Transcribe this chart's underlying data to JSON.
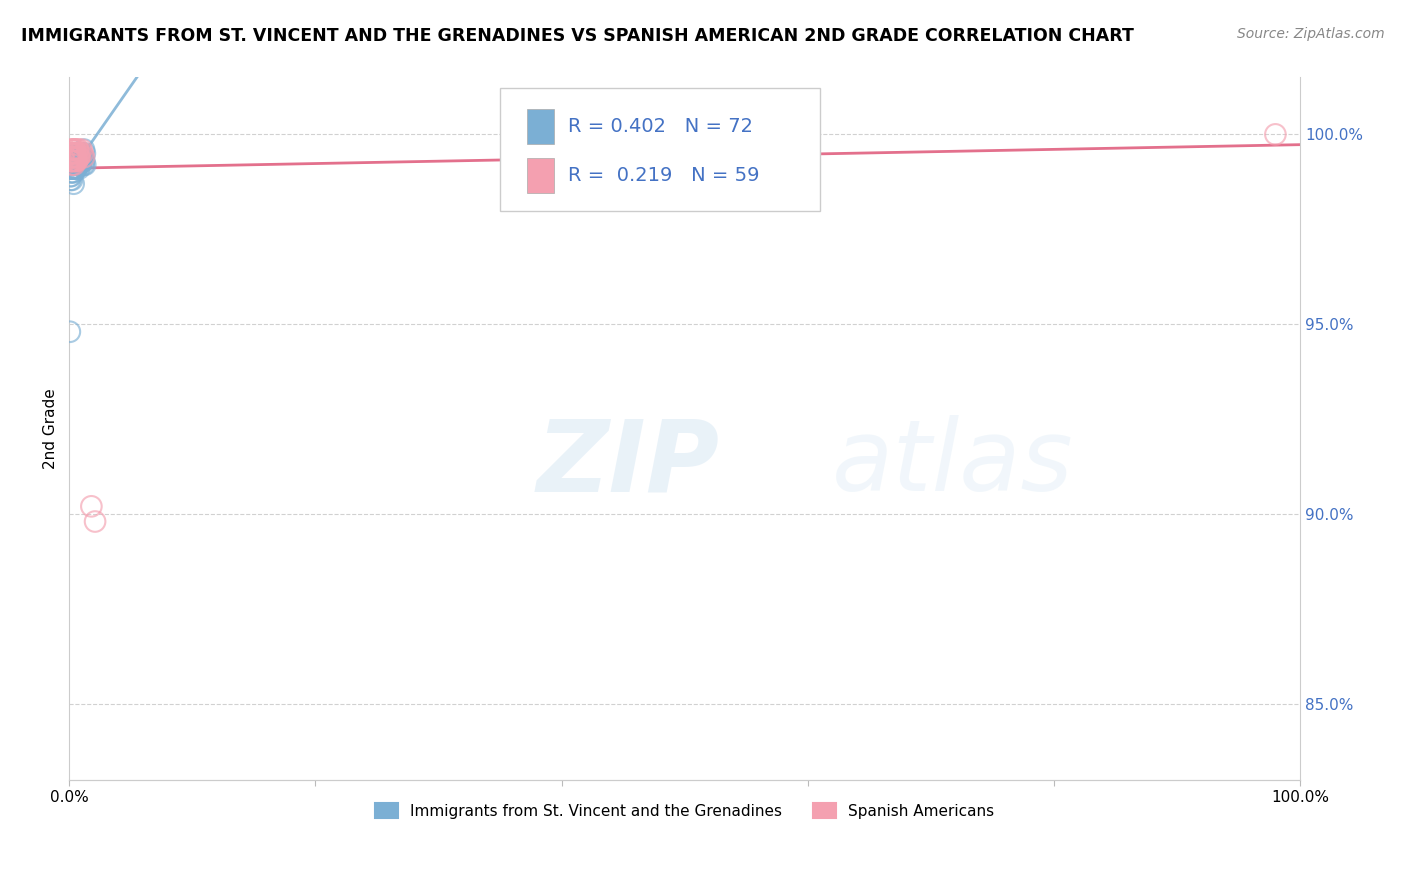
{
  "title": "IMMIGRANTS FROM ST. VINCENT AND THE GRENADINES VS SPANISH AMERICAN 2ND GRADE CORRELATION CHART",
  "source": "Source: ZipAtlas.com",
  "ylabel": "2nd Grade",
  "blue_R": 0.402,
  "blue_N": 72,
  "pink_R": 0.219,
  "pink_N": 59,
  "blue_color": "#7bafd4",
  "pink_color": "#f4a0b0",
  "trend_blue_color": "#7bafd4",
  "trend_pink_color": "#e06080",
  "xlim": [
    0.0,
    100.0
  ],
  "ylim": [
    83.0,
    101.5
  ],
  "right_yticks": [
    85.0,
    90.0,
    95.0,
    100.0
  ],
  "right_yticklabels": [
    "85.0%",
    "90.0%",
    "95.0%",
    "100.0%"
  ],
  "blue_x": [
    0.1,
    0.15,
    0.2,
    0.25,
    0.3,
    0.35,
    0.4,
    0.45,
    0.5,
    0.55,
    0.6,
    0.65,
    0.7,
    0.8,
    0.9,
    1.0,
    1.1,
    1.2,
    1.3,
    0.12,
    0.18,
    0.22,
    0.28,
    0.33,
    0.38,
    0.08,
    0.14,
    0.19,
    0.24,
    0.29,
    0.34,
    0.42,
    0.48,
    0.53,
    0.58,
    0.63,
    0.68,
    0.73,
    0.78,
    0.83,
    0.1,
    0.16,
    0.21,
    0.26,
    0.31,
    0.36,
    0.09,
    0.13,
    0.17,
    0.23,
    0.27,
    0.32,
    0.37,
    0.43,
    0.47,
    0.52,
    0.57,
    0.62,
    0.67,
    0.72,
    0.77,
    0.82,
    0.87,
    0.92,
    0.97,
    1.02,
    1.07,
    1.12,
    1.17,
    1.22,
    1.27,
    0.05
  ],
  "blue_y": [
    99.2,
    99.5,
    99.3,
    99.4,
    99.1,
    99.0,
    99.2,
    99.3,
    99.4,
    99.5,
    99.1,
    99.3,
    99.4,
    99.2,
    99.5,
    99.3,
    99.4,
    99.6,
    99.2,
    99.3,
    99.1,
    99.4,
    99.2,
    99.3,
    99.5,
    99.4,
    99.2,
    99.3,
    99.1,
    99.4,
    99.5,
    99.3,
    99.2,
    99.4,
    99.1,
    99.3,
    99.2,
    99.4,
    99.5,
    99.3,
    98.8,
    98.9,
    99.0,
    99.1,
    99.2,
    98.7,
    98.9,
    99.0,
    99.1,
    98.8,
    99.3,
    99.4,
    99.2,
    99.1,
    99.3,
    99.4,
    99.2,
    99.5,
    99.3,
    99.2,
    99.4,
    99.1,
    99.3,
    99.2,
    99.4,
    99.5,
    99.3,
    99.4,
    99.2,
    99.3,
    99.5,
    94.8
  ],
  "pink_x": [
    0.1,
    0.15,
    0.2,
    0.25,
    0.3,
    0.35,
    0.4,
    0.45,
    0.5,
    0.55,
    0.6,
    0.65,
    0.7,
    0.8,
    0.9,
    1.0,
    1.1,
    1.2,
    0.12,
    0.18,
    0.22,
    0.28,
    0.33,
    0.38,
    0.08,
    0.14,
    0.19,
    0.24,
    0.29,
    0.34,
    0.42,
    0.48,
    0.53,
    0.58,
    0.63,
    0.68,
    0.73,
    0.78,
    0.83,
    0.1,
    0.16,
    0.21,
    0.26,
    0.31,
    0.36,
    1.8,
    2.1,
    0.09,
    0.13,
    0.17,
    0.23,
    0.27,
    0.32,
    0.37,
    0.43,
    0.47,
    0.52,
    0.57,
    98.0
  ],
  "pink_y": [
    99.5,
    99.6,
    99.4,
    99.3,
    99.5,
    99.4,
    99.2,
    99.5,
    99.6,
    99.4,
    99.3,
    99.5,
    99.6,
    99.4,
    99.5,
    99.6,
    99.5,
    99.4,
    99.3,
    99.4,
    99.5,
    99.3,
    99.6,
    99.4,
    99.5,
    99.3,
    99.4,
    99.2,
    99.5,
    99.4,
    99.6,
    99.3,
    99.4,
    99.5,
    99.3,
    99.4,
    99.6,
    99.5,
    99.4,
    99.3,
    99.5,
    99.4,
    99.3,
    99.6,
    99.4,
    90.2,
    89.8,
    99.5,
    99.4,
    99.3,
    99.5,
    99.4,
    99.6,
    99.3,
    99.4,
    99.5,
    99.3,
    99.4,
    100.0
  ],
  "legend_blue_label": "Immigrants from St. Vincent and the Grenadines",
  "legend_pink_label": "Spanish Americans",
  "fig_width": 14.06,
  "fig_height": 8.92
}
